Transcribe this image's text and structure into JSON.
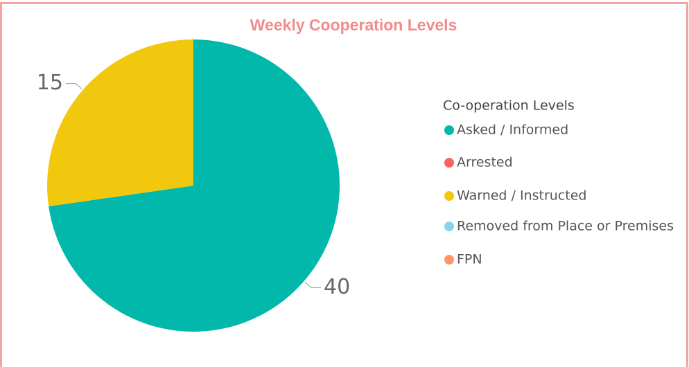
{
  "chart_data": {
    "type": "pie",
    "title": "Weekly Cooperation Levels",
    "legend_title": "Co-operation Levels",
    "categories": [
      "Asked / Informed",
      "Arrested",
      "Warned / Instructed",
      "Removed from Place or Premises",
      "FPN"
    ],
    "values": [
      40,
      0,
      15,
      0,
      0
    ],
    "colors": [
      "#01B8AA",
      "#FD625E",
      "#F2C80F",
      "#8AD4EB",
      "#FE9666"
    ],
    "legend": "right"
  }
}
